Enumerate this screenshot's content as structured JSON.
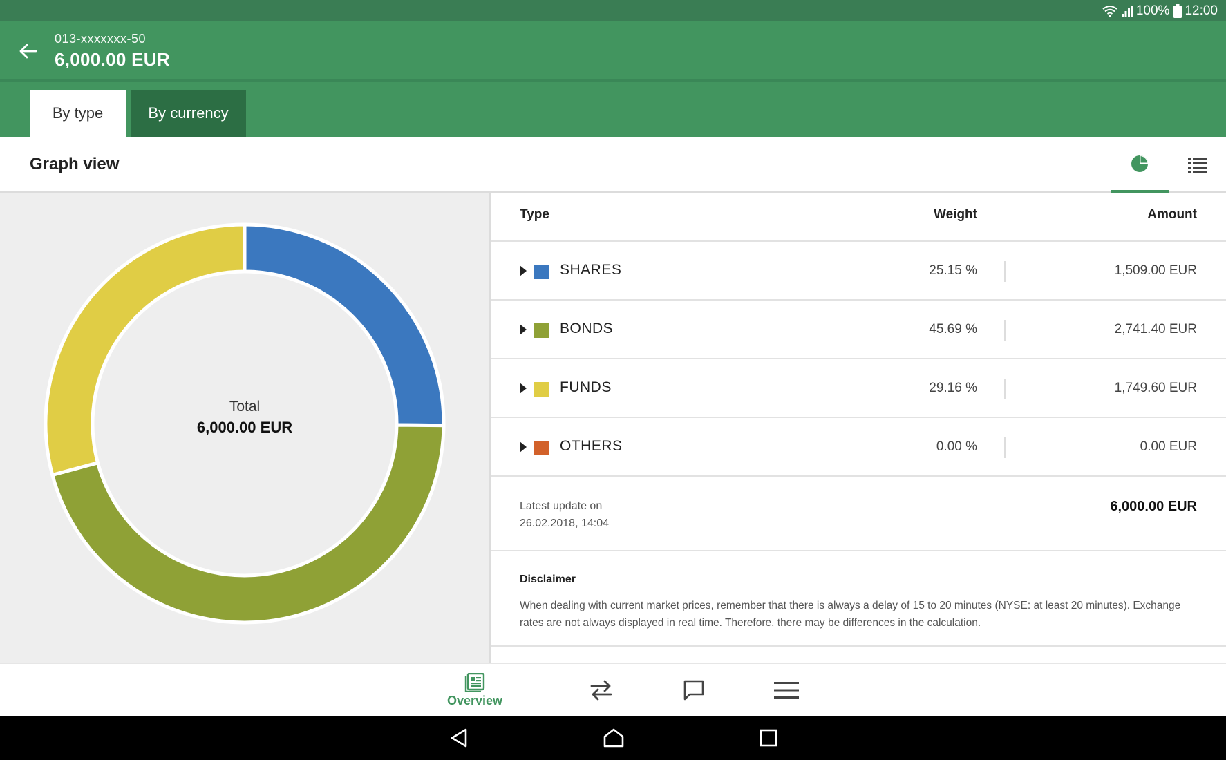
{
  "status_bar": {
    "battery": "100%",
    "time": "12:00"
  },
  "header": {
    "account_number": "013-xxxxxxx-50",
    "balance": "6,000.00 EUR"
  },
  "tabs": [
    {
      "label": "By type",
      "active": true
    },
    {
      "label": "By currency",
      "active": false
    }
  ],
  "graph_header": {
    "title": "Graph view",
    "active_view": "pie-chart"
  },
  "donut": {
    "center_label": "Total",
    "center_value": "6,000.00 EUR"
  },
  "table": {
    "headers": {
      "type": "Type",
      "weight": "Weight",
      "amount": "Amount"
    },
    "rows": [
      {
        "name": "SHARES",
        "weight": "25.15 %",
        "amount": "1,509.00 EUR",
        "color": "#3b78bf"
      },
      {
        "name": "BONDS",
        "weight": "45.69 %",
        "amount": "2,741.40 EUR",
        "color": "#8fa136"
      },
      {
        "name": "FUNDS",
        "weight": "29.16 %",
        "amount": "1,749.60 EUR",
        "color": "#e0cd45"
      },
      {
        "name": "OTHERS",
        "weight": "0.00 %",
        "amount": "0.00 EUR",
        "color": "#d2612a"
      }
    ],
    "update_label": "Latest update on",
    "update_date": "26.02.2018, 14:04",
    "sum": "6,000.00 EUR"
  },
  "disclaimer": {
    "title": "Disclaimer",
    "text": "When dealing with current market prices, remember that there is always a delay of 15 to 20 minutes (NYSE: at least 20 minutes). Exchange rates are not always displayed in real time. Therefore, there may be differences in the calculation."
  },
  "bottom_nav": {
    "items": [
      {
        "label": "Overview",
        "icon": "overview-icon",
        "active": true
      },
      {
        "label": "",
        "icon": "transfer-icon",
        "active": false
      },
      {
        "label": "",
        "icon": "message-icon",
        "active": false
      },
      {
        "label": "",
        "icon": "menu-icon",
        "active": false
      }
    ]
  },
  "colors": {
    "accent": "#42955f",
    "accent_dark": "#2c6e44",
    "status_bar": "#3a7d54"
  },
  "chart_data": {
    "type": "pie",
    "categories": [
      "SHARES",
      "BONDS",
      "FUNDS",
      "OTHERS"
    ],
    "values": [
      25.15,
      45.69,
      29.16,
      0.0
    ],
    "colors": [
      "#3b78bf",
      "#8fa136",
      "#e0cd45",
      "#d2612a"
    ]
  }
}
